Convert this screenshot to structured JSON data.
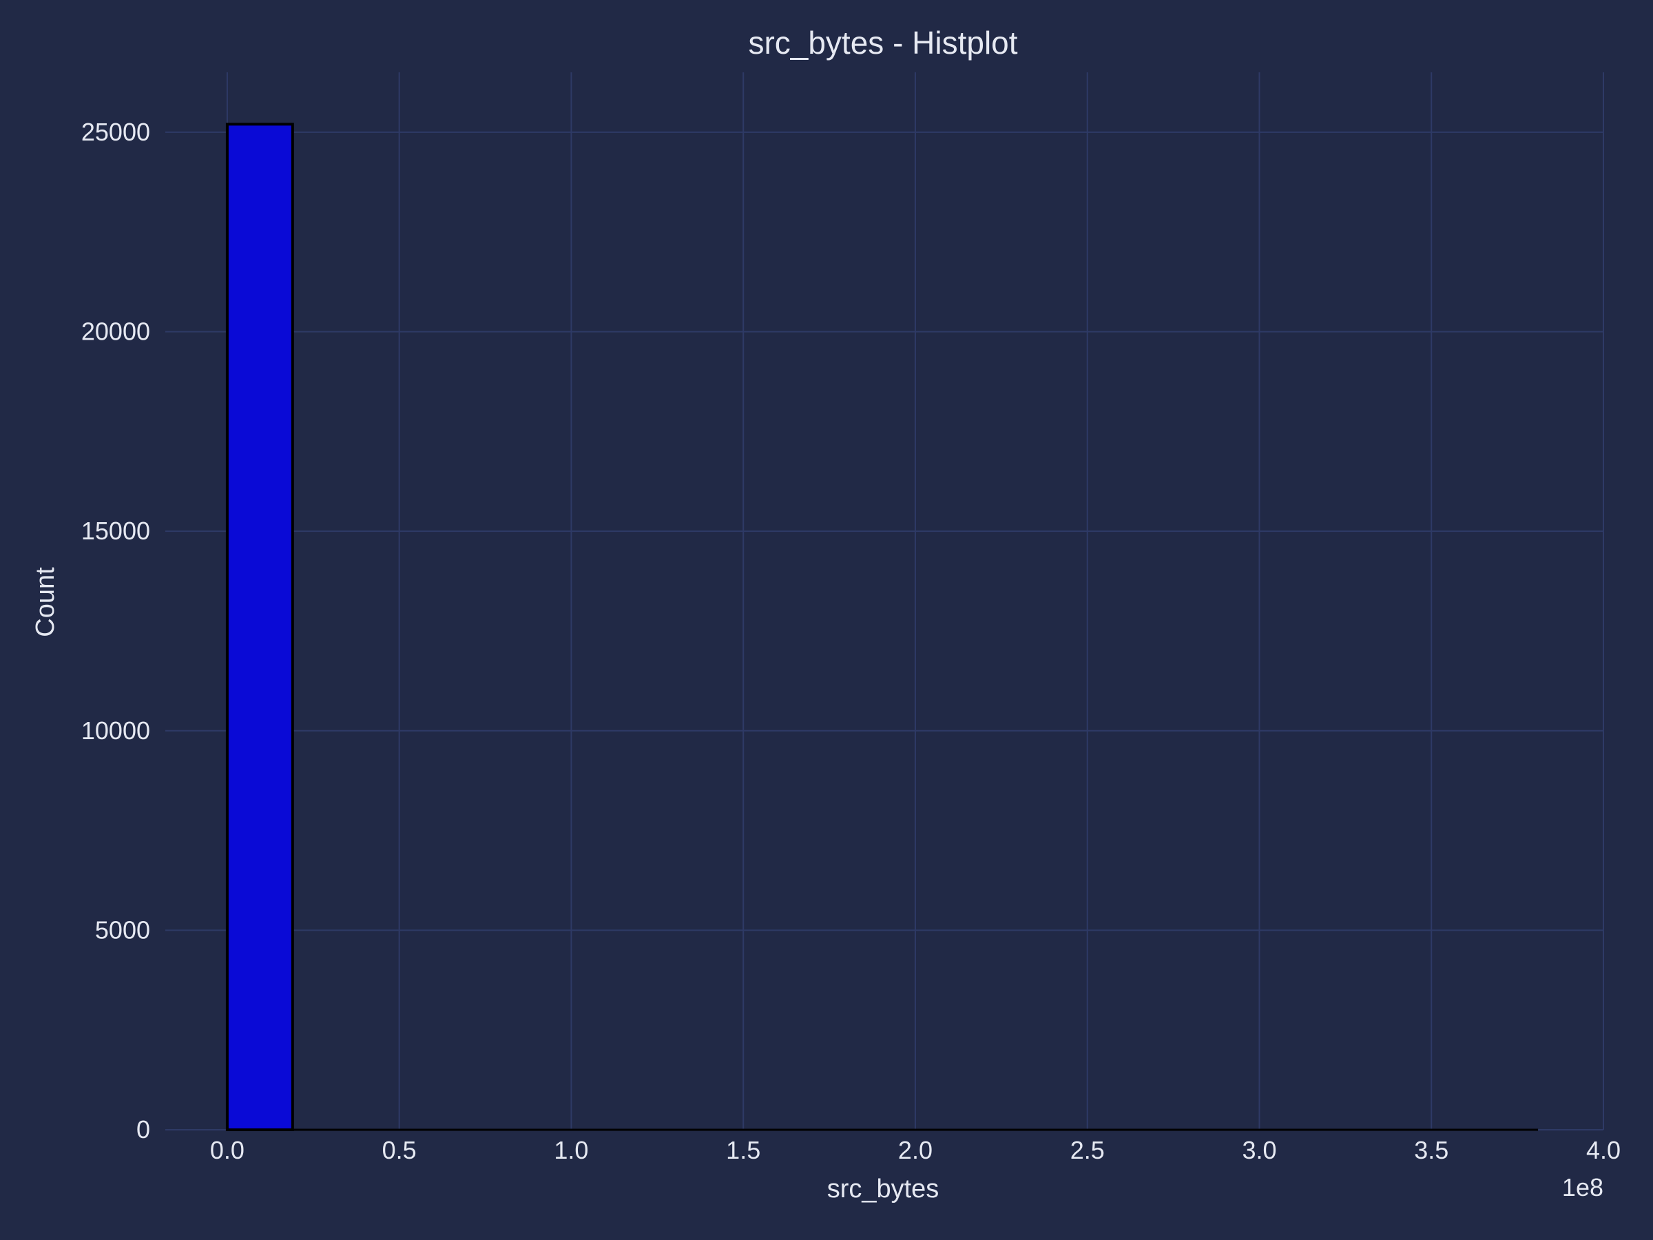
{
  "chart_data": {
    "type": "bar",
    "title": "src_bytes - Histplot",
    "xlabel": "src_bytes",
    "ylabel": "Count",
    "x_offset_label": "1e8",
    "xlim": [
      -0.18,
      4.0
    ],
    "ylim": [
      0,
      26500
    ],
    "x_ticks": [
      0.0,
      0.5,
      1.0,
      1.5,
      2.0,
      2.5,
      3.0,
      3.5,
      4.0
    ],
    "x_tick_labels": [
      "0.0",
      "0.5",
      "1.0",
      "1.5",
      "2.0",
      "2.5",
      "3.0",
      "3.5",
      "4.0"
    ],
    "y_ticks": [
      0,
      5000,
      10000,
      15000,
      20000,
      25000
    ],
    "y_tick_labels": [
      "0",
      "5000",
      "10000",
      "15000",
      "20000",
      "25000"
    ],
    "grid": true,
    "bins": [
      {
        "start": 0.0,
        "end": 0.19,
        "count": 25200
      },
      {
        "start": 0.19,
        "end": 0.38,
        "count": 0
      },
      {
        "start": 0.38,
        "end": 0.57,
        "count": 0
      },
      {
        "start": 0.57,
        "end": 0.76,
        "count": 0
      },
      {
        "start": 0.76,
        "end": 0.95,
        "count": 0
      },
      {
        "start": 0.95,
        "end": 1.14,
        "count": 0
      },
      {
        "start": 1.14,
        "end": 1.33,
        "count": 0
      },
      {
        "start": 1.33,
        "end": 1.52,
        "count": 0
      },
      {
        "start": 1.52,
        "end": 1.71,
        "count": 0
      },
      {
        "start": 1.71,
        "end": 1.9,
        "count": 0
      },
      {
        "start": 1.9,
        "end": 2.09,
        "count": 0
      },
      {
        "start": 2.09,
        "end": 2.28,
        "count": 0
      },
      {
        "start": 2.28,
        "end": 2.47,
        "count": 0
      },
      {
        "start": 2.47,
        "end": 2.66,
        "count": 0
      },
      {
        "start": 2.66,
        "end": 2.85,
        "count": 0
      },
      {
        "start": 2.85,
        "end": 3.04,
        "count": 0
      },
      {
        "start": 3.04,
        "end": 3.23,
        "count": 0
      },
      {
        "start": 3.23,
        "end": 3.42,
        "count": 0
      },
      {
        "start": 3.42,
        "end": 3.61,
        "count": 0
      },
      {
        "start": 3.61,
        "end": 3.81,
        "count": 0
      }
    ],
    "colors": {
      "background": "#212946",
      "bar": "#0a0ad6",
      "bar_edge": "#000000",
      "grid": "#2e3a66",
      "text": "#e6e9f2"
    }
  }
}
